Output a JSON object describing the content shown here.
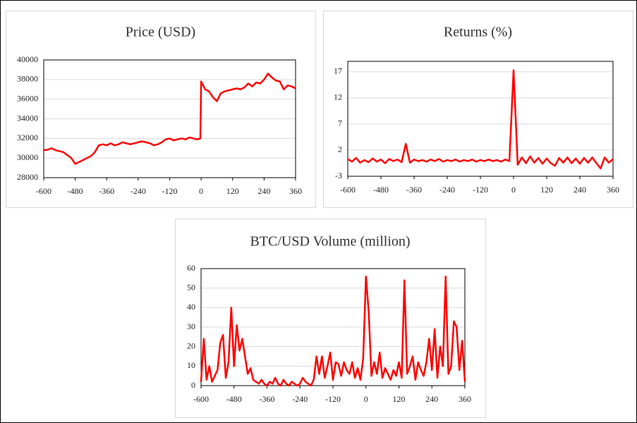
{
  "chart_data": [
    {
      "type": "line",
      "title": "Price (USD)",
      "color": "#ff0000",
      "grid": true,
      "xlim": [
        -600,
        360
      ],
      "xticks": [
        -600,
        -480,
        -360,
        -240,
        -120,
        0,
        120,
        240,
        360
      ],
      "ylim": [
        28000,
        40000
      ],
      "yticks": [
        28000,
        30000,
        32000,
        34000,
        36000,
        38000,
        40000
      ],
      "x": [
        -600,
        -585,
        -570,
        -555,
        -540,
        -525,
        -510,
        -495,
        -480,
        -465,
        -450,
        -435,
        -420,
        -405,
        -390,
        -375,
        -360,
        -345,
        -330,
        -315,
        -300,
        -285,
        -270,
        -255,
        -240,
        -225,
        -210,
        -195,
        -180,
        -165,
        -150,
        -135,
        -120,
        -105,
        -90,
        -75,
        -60,
        -45,
        -30,
        -15,
        -3,
        0,
        15,
        30,
        45,
        60,
        75,
        90,
        105,
        120,
        135,
        150,
        165,
        180,
        195,
        210,
        225,
        240,
        255,
        270,
        285,
        300,
        315,
        330,
        345,
        360
      ],
      "values": [
        30800,
        30850,
        31000,
        30800,
        30700,
        30600,
        30300,
        30000,
        29400,
        29600,
        29800,
        30000,
        30200,
        30600,
        31300,
        31400,
        31300,
        31500,
        31300,
        31400,
        31600,
        31500,
        31400,
        31500,
        31600,
        31700,
        31600,
        31500,
        31300,
        31400,
        31600,
        31900,
        32000,
        31800,
        31900,
        32000,
        31900,
        32100,
        32000,
        31900,
        32000,
        37800,
        37000,
        36800,
        36200,
        35800,
        36600,
        36800,
        36900,
        37000,
        37100,
        37000,
        37200,
        37600,
        37300,
        37700,
        37600,
        38000,
        38600,
        38200,
        37900,
        37800,
        37000,
        37400,
        37300,
        37100
      ]
    },
    {
      "type": "line",
      "title": "Returns (%)",
      "color": "#ff0000",
      "grid": true,
      "xlim": [
        -600,
        360
      ],
      "xticks": [
        -600,
        -480,
        -360,
        -240,
        -120,
        0,
        120,
        240,
        360
      ],
      "ylim": [
        -3,
        19
      ],
      "yticks": [
        -3,
        2,
        7,
        12,
        17
      ],
      "x": [
        -600,
        -585,
        -570,
        -555,
        -540,
        -525,
        -510,
        -495,
        -480,
        -465,
        -450,
        -435,
        -420,
        -405,
        -390,
        -375,
        -360,
        -345,
        -330,
        -315,
        -300,
        -285,
        -270,
        -255,
        -240,
        -225,
        -210,
        -195,
        -180,
        -165,
        -150,
        -135,
        -120,
        -105,
        -90,
        -75,
        -60,
        -45,
        -30,
        -15,
        0,
        15,
        30,
        45,
        60,
        75,
        90,
        105,
        120,
        135,
        150,
        165,
        180,
        195,
        210,
        225,
        240,
        255,
        270,
        285,
        300,
        315,
        330,
        345,
        360
      ],
      "values": [
        0.3,
        -0.2,
        0.5,
        -0.4,
        0.1,
        -0.3,
        0.4,
        -0.2,
        0.2,
        -0.5,
        0.3,
        -0.1,
        0.2,
        -0.3,
        3.2,
        -0.4,
        0.2,
        -0.1,
        0.1,
        -0.2,
        0.2,
        -0.1,
        0.3,
        -0.2,
        0.1,
        -0.1,
        0.2,
        -0.2,
        0.1,
        -0.1,
        0.2,
        -0.2,
        0.1,
        -0.1,
        0.2,
        -0.1,
        0.1,
        -0.2,
        0.2,
        -0.1,
        17.3,
        -0.8,
        0.6,
        -0.5,
        0.8,
        -0.4,
        0.5,
        -0.6,
        0.4,
        -0.5,
        -1.0,
        0.5,
        -0.4,
        0.6,
        -0.5,
        0.4,
        -0.6,
        0.5,
        -0.4,
        0.6,
        -0.5,
        -1.5,
        0.6,
        -0.4,
        0.3
      ]
    },
    {
      "type": "line",
      "title": "BTC/USD Volume (million)",
      "color": "#ff0000",
      "grid": true,
      "xlim": [
        -600,
        360
      ],
      "xticks": [
        -600,
        -480,
        -360,
        -240,
        -120,
        0,
        120,
        240,
        360
      ],
      "ylim": [
        0,
        60
      ],
      "yticks": [
        0,
        10,
        20,
        30,
        40,
        50,
        60
      ],
      "x": [
        -600,
        -590,
        -580,
        -570,
        -560,
        -550,
        -540,
        -530,
        -520,
        -510,
        -500,
        -490,
        -480,
        -470,
        -460,
        -450,
        -440,
        -430,
        -420,
        -410,
        -400,
        -390,
        -380,
        -370,
        -360,
        -350,
        -340,
        -330,
        -320,
        -310,
        -300,
        -290,
        -280,
        -270,
        -260,
        -250,
        -240,
        -230,
        -220,
        -210,
        -200,
        -190,
        -180,
        -170,
        -160,
        -150,
        -140,
        -130,
        -120,
        -110,
        -100,
        -90,
        -80,
        -70,
        -60,
        -50,
        -40,
        -30,
        -20,
        -10,
        0,
        10,
        20,
        30,
        40,
        50,
        60,
        70,
        80,
        90,
        100,
        110,
        120,
        130,
        140,
        150,
        160,
        170,
        180,
        190,
        200,
        210,
        220,
        230,
        240,
        250,
        260,
        270,
        280,
        290,
        300,
        310,
        320,
        330,
        340,
        350,
        360
      ],
      "values": [
        2,
        24,
        3,
        10,
        2,
        5,
        8,
        22,
        26,
        4,
        12,
        40,
        10,
        31,
        18,
        24,
        15,
        6,
        9,
        3,
        2,
        1,
        3,
        1,
        0,
        2,
        1,
        4,
        1,
        0,
        3,
        1,
        0,
        2,
        1,
        0,
        1,
        4,
        2,
        1,
        0,
        3,
        15,
        6,
        15,
        4,
        10,
        17,
        3,
        12,
        11,
        5,
        12,
        8,
        6,
        12,
        4,
        9,
        3,
        14,
        56,
        38,
        5,
        12,
        6,
        17,
        4,
        9,
        6,
        3,
        8,
        5,
        12,
        4,
        54,
        6,
        10,
        15,
        3,
        12,
        8,
        5,
        12,
        24,
        8,
        29,
        4,
        20,
        10,
        56,
        6,
        10,
        33,
        30,
        8,
        23,
        2
      ]
    }
  ]
}
